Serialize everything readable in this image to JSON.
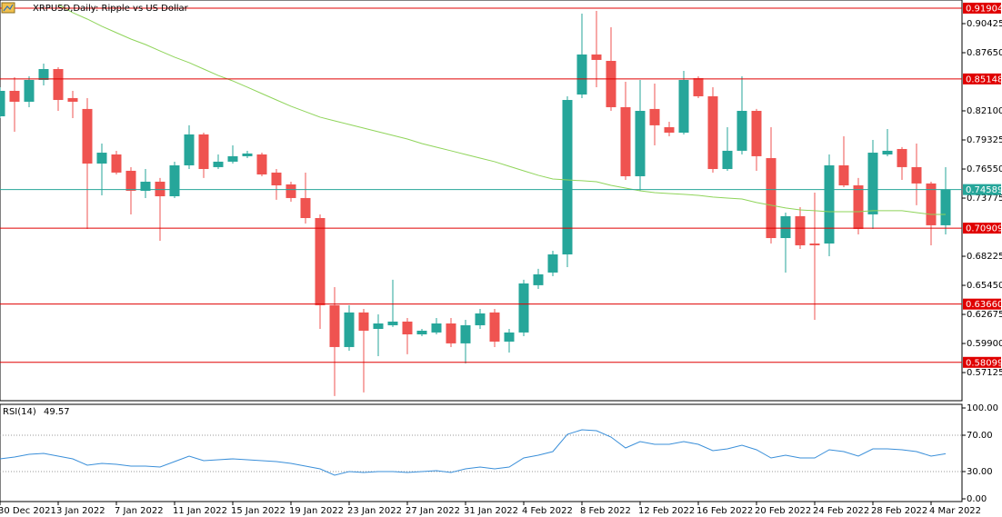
{
  "chart_data": {
    "type": "candlestick",
    "title": "XRPUSD,Daily: Ripple vs US Dollar",
    "categories": [
      "30 Dec 2021",
      null,
      null,
      null,
      "3 Jan 2022",
      null,
      null,
      null,
      "7 Jan 2022",
      null,
      null,
      null,
      "11 Jan 2022",
      null,
      null,
      null,
      "15 Jan 2022",
      null,
      null,
      null,
      "19 Jan 2022",
      null,
      null,
      null,
      "23 Jan 2022",
      null,
      null,
      null,
      "27 Jan 2022",
      null,
      null,
      null,
      "31 Jan 2022",
      null,
      null,
      null,
      "4 Feb 2022",
      null,
      null,
      null,
      "8 Feb 2022",
      null,
      null,
      null,
      "12 Feb 2022",
      null,
      null,
      null,
      "16 Feb 2022",
      null,
      null,
      null,
      "20 Feb 2022",
      null,
      null,
      null,
      "24 Feb 2022",
      null,
      null,
      null,
      "28 Feb 2022",
      null,
      null,
      null,
      "4 Mar 2022",
      null
    ],
    "open": [
      0.8158,
      0.8401,
      0.8297,
      0.8505,
      0.8609,
      0.8332,
      0.8228,
      0.7707,
      0.7794,
      0.7638,
      0.7447,
      0.7534,
      0.7395,
      0.769,
      0.7985,
      0.7673,
      0.7725,
      0.7777,
      0.7794,
      0.7621,
      0.7508,
      0.7378,
      0.7187,
      0.6355,
      0.5956,
      0.6286,
      0.6129,
      0.6164,
      0.6199,
      0.6077,
      0.6095,
      0.6181,
      0.5991,
      0.6164,
      0.6286,
      0.6008,
      0.6095,
      0.6546,
      0.6667,
      0.684,
      0.8366,
      0.8748,
      0.8687,
      0.8245,
      0.7586,
      0.8228,
      0.8054,
      0.8002,
      0.8522,
      0.8349,
      0.7655,
      0.7829,
      0.821,
      0.7759,
      0.6996,
      0.7205,
      0.6944,
      0.6944,
      0.769,
      0.7499,
      0.7222,
      0.7794,
      0.7846,
      0.7673,
      0.7517,
      0.7118
    ],
    "high": [
      0.8436,
      0.8531,
      0.854,
      0.8661,
      0.8626,
      0.8401,
      0.8332,
      0.7898,
      0.7829,
      0.7673,
      0.7655,
      0.7569,
      0.7725,
      0.8072,
      0.8002,
      0.7794,
      0.7881,
      0.7829,
      0.7811,
      0.7655,
      0.7534,
      0.7621,
      0.7222,
      0.6528,
      0.6355,
      0.632,
      0.6268,
      0.6598,
      0.6233,
      0.6129,
      0.6233,
      0.6233,
      0.6216,
      0.632,
      0.632,
      0.6129,
      0.6598,
      0.6702,
      0.6875,
      0.8349,
      0.9138,
      0.9164,
      0.9008,
      0.8488,
      0.8505,
      0.847,
      0.8106,
      0.8592,
      0.854,
      0.8436,
      0.8054,
      0.854,
      0.8228,
      0.8054,
      0.7239,
      0.7291,
      0.743,
      0.7794,
      0.7967,
      0.7569,
      0.7933,
      0.8037,
      0.7864,
      0.7898,
      0.7534,
      0.7673
    ],
    "low": [
      0.8141,
      0.8011,
      0.8245,
      0.8453,
      0.821,
      0.8141,
      0.7083,
      0.7404,
      0.7603,
      0.7222,
      0.7378,
      0.697,
      0.7378,
      0.7655,
      0.7569,
      0.7655,
      0.7707,
      0.7759,
      0.7586,
      0.7361,
      0.7343,
      0.7135,
      0.6129,
      0.5488,
      0.5921,
      0.5523,
      0.5869,
      0.6147,
      0.5887,
      0.606,
      0.6077,
      0.5956,
      0.58,
      0.6129,
      0.5956,
      0.5904,
      0.606,
      0.6511,
      0.6632,
      0.6719,
      0.8332,
      0.8436,
      0.821,
      0.7551,
      0.7447,
      0.7881,
      0.7967,
      0.7985,
      0.8332,
      0.7621,
      0.7638,
      0.7794,
      0.7638,
      0.6944,
      0.6667,
      0.6892,
      0.6216,
      0.6823,
      0.7482,
      0.7031,
      0.7083,
      0.7777,
      0.7551,
      0.7309,
      0.6927,
      0.7031
    ],
    "close": [
      0.8401,
      0.8297,
      0.8505,
      0.8609,
      0.8314,
      0.8297,
      0.7707,
      0.7811,
      0.7621,
      0.7447,
      0.7534,
      0.7395,
      0.769,
      0.7985,
      0.7655,
      0.7725,
      0.7777,
      0.7803,
      0.7603,
      0.7499,
      0.7378,
      0.7187,
      0.6355,
      0.5956,
      0.6286,
      0.6112,
      0.6181,
      0.6199,
      0.6077,
      0.6112,
      0.6181,
      0.5991,
      0.6164,
      0.6277,
      0.6008,
      0.6095,
      0.6563,
      0.665,
      0.684,
      0.8314,
      0.8748,
      0.8696,
      0.8245,
      0.7586,
      0.821,
      0.8072,
      0.8002,
      0.8505,
      0.8349,
      0.7655,
      0.7829,
      0.821,
      0.7777,
      0.6996,
      0.7205,
      0.6927,
      0.6927,
      0.769,
      0.7499,
      0.7083,
      0.7811,
      0.7829,
      0.7673,
      0.7517,
      0.7118,
      0.74589
    ],
    "up_color": "#26a69a",
    "down_color": "#ef5350",
    "ma": {
      "color": "#8fd45a",
      "values": [
        null,
        null,
        null,
        null,
        0.9225,
        0.9147,
        0.9086,
        0.9017,
        0.8956,
        0.8895,
        0.8843,
        0.8782,
        0.8722,
        0.867,
        0.8609,
        0.8548,
        0.8496,
        0.8436,
        0.8375,
        0.8314,
        0.8254,
        0.8202,
        0.815,
        0.8115,
        0.808,
        0.8045,
        0.8011,
        0.7976,
        0.7941,
        0.7898,
        0.7863,
        0.7829,
        0.7794,
        0.7759,
        0.7725,
        0.7681,
        0.7638,
        0.7595,
        0.756,
        0.7551,
        0.7543,
        0.7534,
        0.7499,
        0.7473,
        0.7447,
        0.743,
        0.7421,
        0.7413,
        0.7404,
        0.7387,
        0.7378,
        0.7369,
        0.7335,
        0.7309,
        0.7283,
        0.7265,
        0.7257,
        0.7248,
        0.7248,
        0.7248,
        0.7257,
        0.7257,
        0.7257,
        0.7239,
        0.7222,
        0.7222
      ]
    },
    "ylim": [
      0.5444,
      0.9268
    ],
    "yticks": [
      0.90425,
      {
        "value": 0.8765,
        "label": "0.87650"
      },
      {
        "value": 0.821,
        "label": "0.82100"
      },
      0.79325,
      {
        "value": 0.7655,
        "label": "0.76550"
      },
      0.73775,
      0.68225,
      {
        "value": 0.6545,
        "label": "0.65450"
      },
      0.62675,
      {
        "value": 0.599,
        "label": "0.59900"
      },
      0.57125
    ],
    "hlines": [
      0.91904,
      0.85148,
      0.70909,
      {
        "value": 0.6366,
        "label": "0.63660"
      },
      0.58099
    ],
    "hline_color": "#e00000",
    "current_price": 0.74589,
    "current_color": "#26a69a",
    "rsi": {
      "title": "RSI(14)",
      "color": "#3a8fd9",
      "values": [
        44,
        46,
        49,
        50,
        47,
        44,
        37,
        39,
        38,
        36,
        36,
        35,
        41,
        47,
        42,
        43,
        44,
        43,
        42,
        41,
        39,
        36,
        33,
        26,
        30,
        29,
        30,
        30,
        29,
        30,
        31,
        29,
        33,
        35,
        33,
        35,
        45,
        48,
        52,
        71,
        76,
        75,
        68,
        56,
        63,
        60,
        60,
        63,
        60,
        53,
        55,
        59,
        54,
        45,
        48,
        45,
        45,
        54,
        52,
        47,
        55,
        55,
        54,
        52,
        47,
        49.57
      ],
      "ylim": [
        0,
        100
      ],
      "yticks": [
        {
          "value": 100,
          "label": "100.00"
        },
        {
          "value": 70,
          "label": "70.00"
        },
        {
          "value": 30,
          "label": "30.00"
        },
        {
          "value": 0,
          "label": "0.00"
        }
      ]
    }
  }
}
